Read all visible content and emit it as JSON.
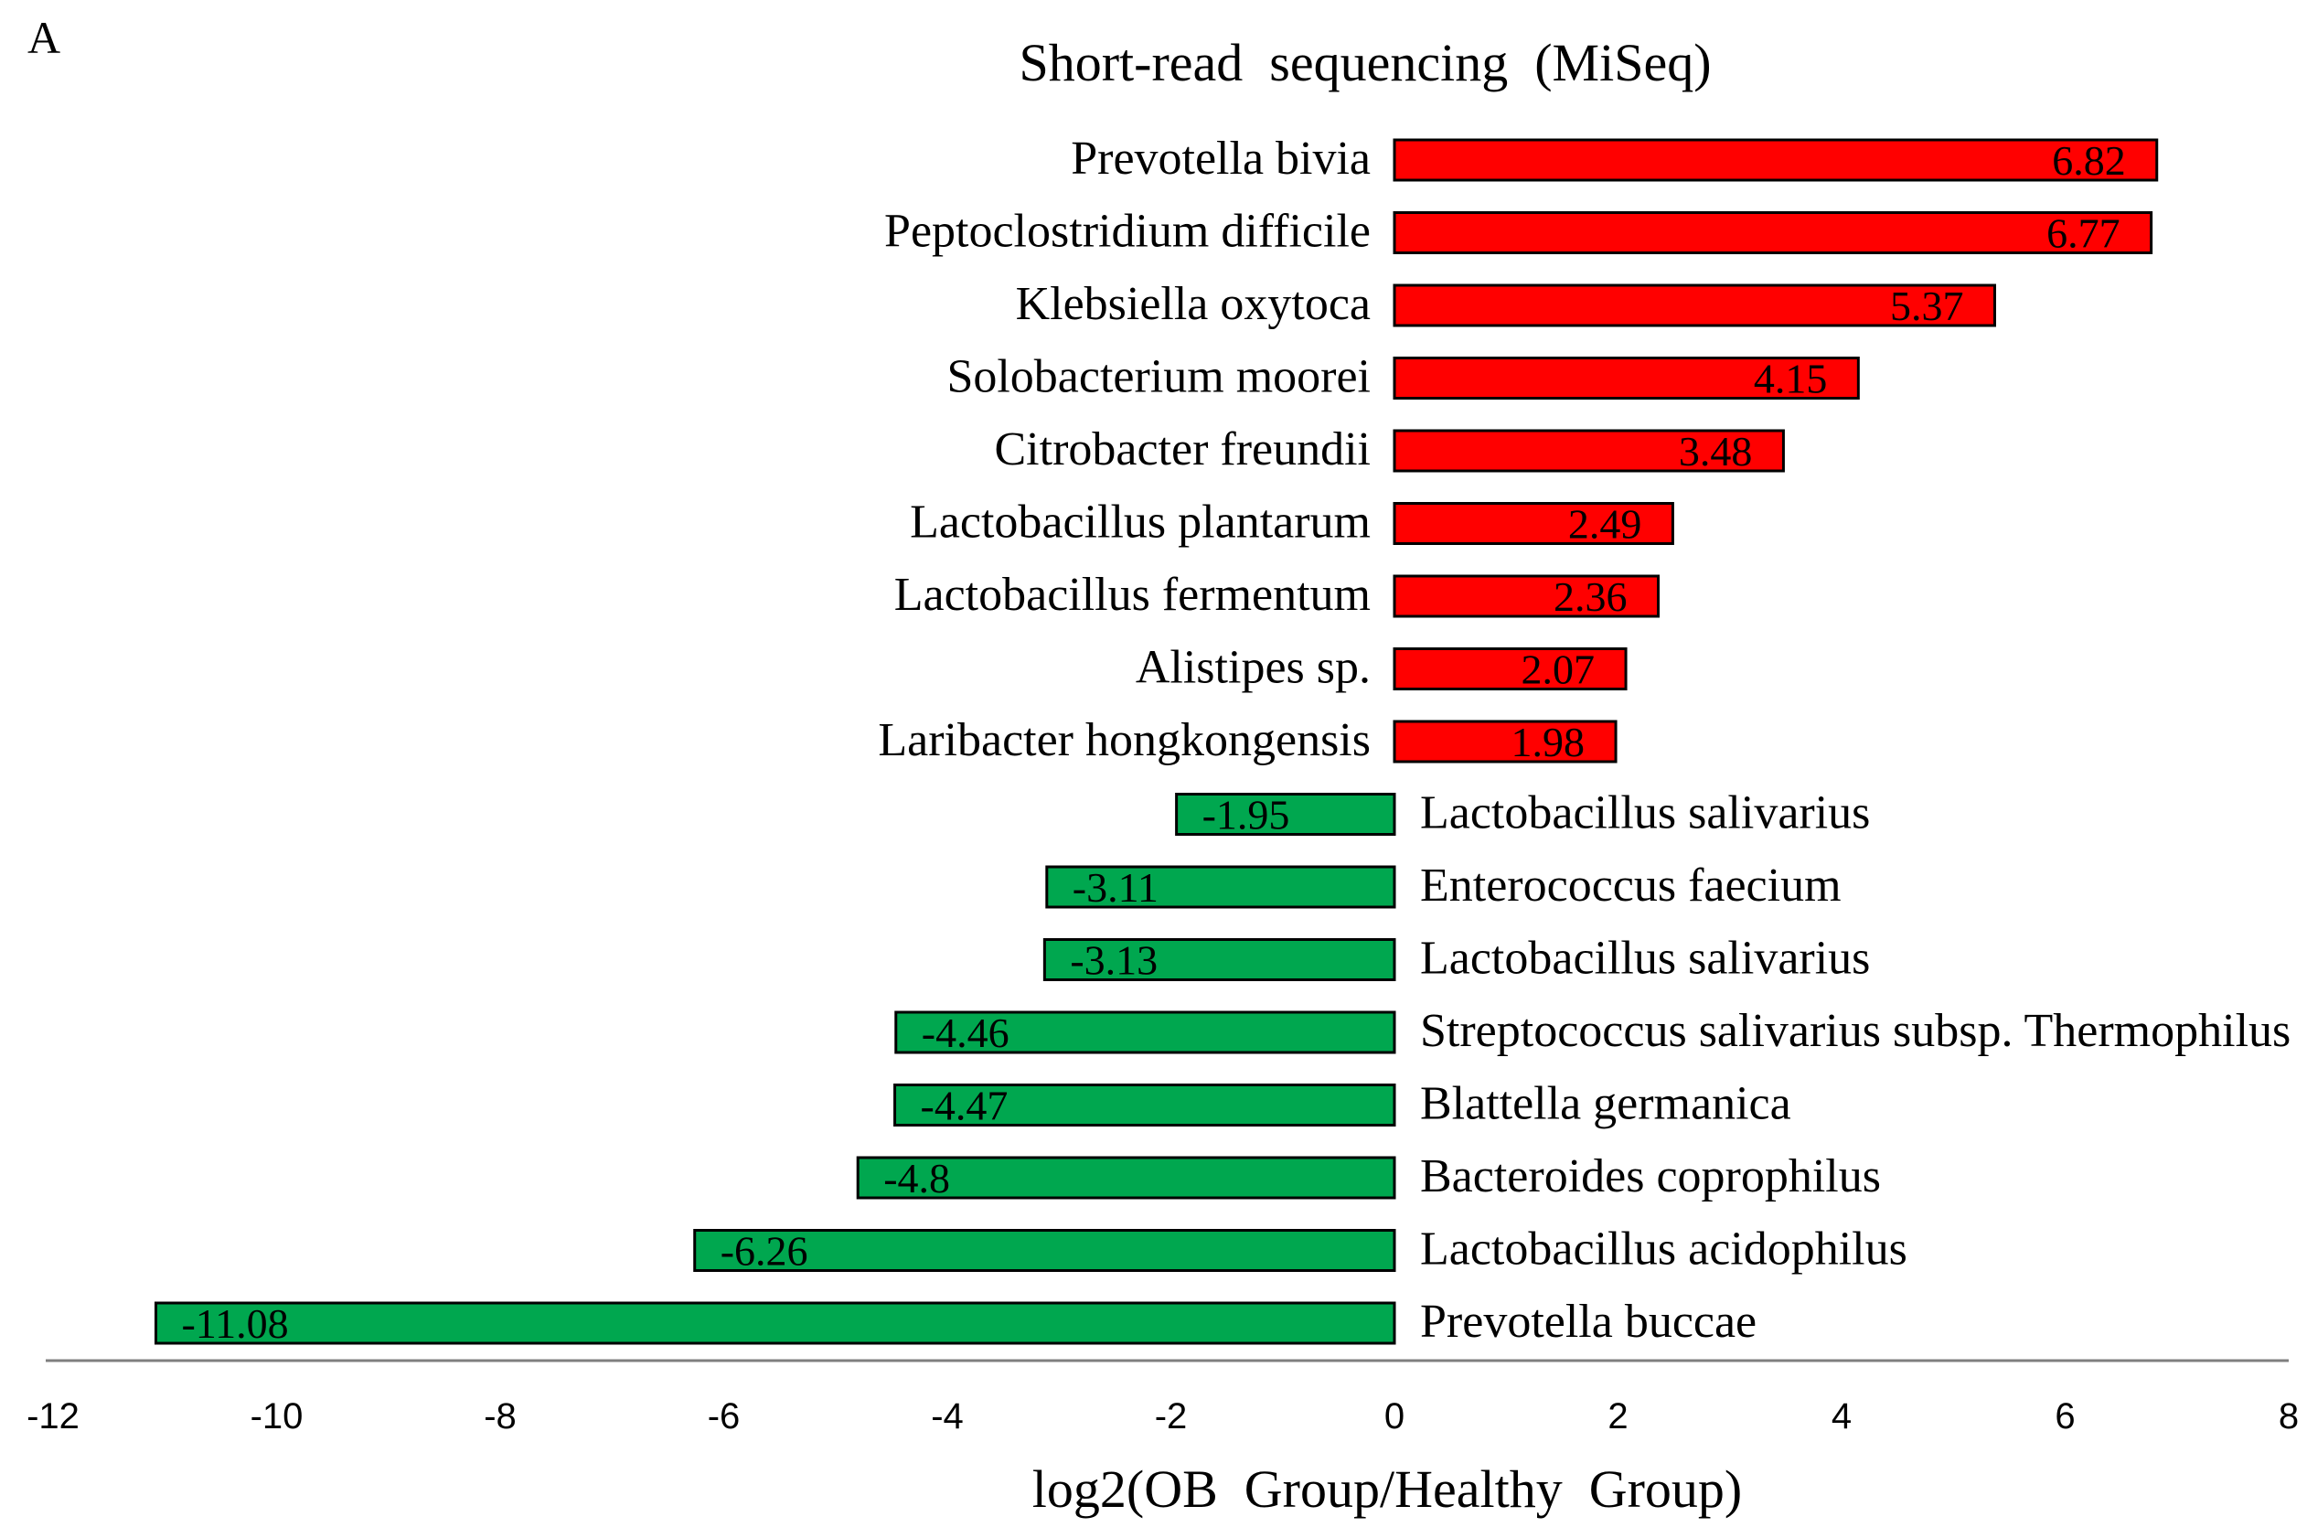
{
  "panel_label": "A",
  "chart_data": {
    "type": "bar",
    "orientation": "horizontal",
    "title": "Short-read  sequencing  (MiSeq)",
    "xlabel": "log2(OB  Group/Healthy  Group)",
    "ylabel": "",
    "xlim": [
      -12,
      8
    ],
    "xticks": [
      -12,
      -10,
      -8,
      -6,
      -4,
      -2,
      0,
      2,
      4,
      6,
      8
    ],
    "grid": false,
    "legend": "none",
    "colors": {
      "positive": "#ff0000",
      "negative": "#00a74f",
      "outline": "#000000",
      "axis": "#7f7f7f"
    },
    "categories": [
      "Prevotella bivia",
      "Peptoclostridium difficile",
      "Klebsiella oxytoca",
      "Solobacterium moorei",
      "Citrobacter freundii",
      "Lactobacillus plantarum",
      "Lactobacillus fermentum",
      "Alistipes sp.",
      "Laribacter hongkongensis",
      "Lactobacillus salivarius",
      "Enterococcus faecium",
      "Lactobacillus salivarius",
      "Streptococcus salivarius subsp. Thermophilus",
      "Blattella germanica",
      "Bacteroides coprophilus",
      "Lactobacillus acidophilus",
      "Prevotella buccae"
    ],
    "values": [
      6.82,
      6.77,
      5.37,
      4.15,
      3.48,
      2.49,
      2.36,
      2.07,
      1.98,
      -1.95,
      -3.11,
      -3.13,
      -4.46,
      -4.47,
      -4.8,
      -6.26,
      -11.08
    ],
    "value_labels": [
      "6.82",
      "6.77",
      "5.37",
      "4.15",
      "3.48",
      "2.49",
      "2.36",
      "2.07",
      "1.98",
      "-1.95",
      "-3.11",
      "-3.13",
      "-4.46",
      "-4.47",
      "-4.8",
      "-6.26",
      "-11.08"
    ]
  }
}
